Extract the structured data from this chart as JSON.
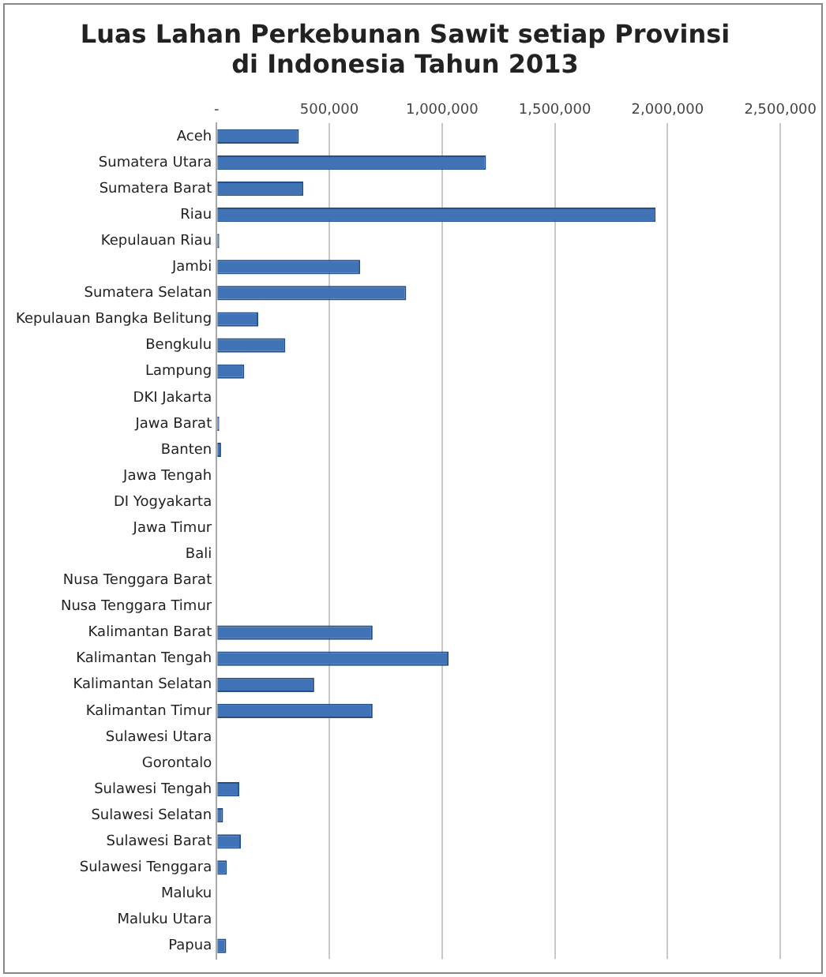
{
  "chart_data": {
    "type": "bar",
    "orientation": "horizontal",
    "title": "Luas Lahan Perkebunan Sawit setiap Provinsi\ndi Indonesia Tahun 2013",
    "categories": [
      "Aceh",
      "Sumatera Utara",
      "Sumatera Barat",
      "Riau",
      "Kepulauan Riau",
      "Jambi",
      "Sumatera Selatan",
      "Kepulauan Bangka Belitung",
      "Bengkulu",
      "Lampung",
      "DKI Jakarta",
      "Jawa Barat",
      "Banten",
      "Jawa Tengah",
      "DI Yogyakarta",
      "Jawa Timur",
      "Bali",
      "Nusa Tenggara Barat",
      "Nusa Tenggara Timur",
      "Kalimantan Barat",
      "Kalimantan Tengah",
      "Kalimantan Selatan",
      "Kalimantan Timur",
      "Sulawesi Utara",
      "Gorontalo",
      "Sulawesi Tengah",
      "Sulawesi Selatan",
      "Sulawesi Barat",
      "Sulawesi Tenggara",
      "Maluku",
      "Maluku Utara",
      "Papua"
    ],
    "values": [
      365000,
      1195000,
      385000,
      1947000,
      12000,
      637000,
      841000,
      185000,
      305000,
      123000,
      0,
      12000,
      20000,
      0,
      0,
      0,
      0,
      0,
      0,
      692000,
      1029000,
      433000,
      692000,
      0,
      0,
      101000,
      29000,
      108000,
      46000,
      0,
      0,
      43000
    ],
    "color": "#3f73b5",
    "xlim": [
      0,
      2500000
    ],
    "xticks": [
      {
        "value": 0,
        "label": "-"
      },
      {
        "value": 500000,
        "label": "500,000"
      },
      {
        "value": 1000000,
        "label": "1,000,000"
      },
      {
        "value": 1500000,
        "label": "1,500,000"
      },
      {
        "value": 2000000,
        "label": "2,000,000"
      },
      {
        "value": 2500000,
        "label": "2,500,000"
      }
    ],
    "grid": "x"
  }
}
